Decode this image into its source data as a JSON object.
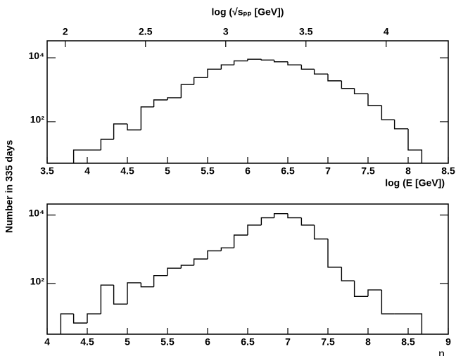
{
  "ylabel": "Number in 335 days",
  "chart_data": [
    {
      "type": "histogram",
      "xlabel": "log (E [GeV])",
      "x2label": "log (√sₚₚ [GeV])",
      "log_y": true,
      "color": "#000000",
      "bins": [
        3.83,
        4,
        4.17,
        4.33,
        4.5,
        4.67,
        4.83,
        5,
        5.17,
        5.33,
        5.5,
        5.67,
        5.83,
        6,
        6.17,
        6.33,
        6.5,
        6.67,
        6.83,
        7,
        7.17,
        7.33,
        7.5,
        7.67,
        7.83,
        8,
        8.17
      ],
      "values": [
        13,
        13,
        28,
        85,
        55,
        290,
        480,
        560,
        1450,
        2400,
        4400,
        6000,
        8000,
        9000,
        8500,
        7500,
        6000,
        4400,
        3100,
        1900,
        1100,
        750,
        320,
        115,
        60,
        13
      ],
      "xlim": [
        3.5,
        8.5
      ],
      "xticks": [
        3.5,
        4,
        4.5,
        5,
        5.5,
        6,
        6.5,
        7,
        7.5,
        8,
        8.5
      ],
      "x2lim": [
        1.887,
        4.387
      ],
      "x2ticks": [
        2,
        2.5,
        3,
        3.5,
        4
      ],
      "ylim": [
        5,
        34000
      ],
      "yticks": [
        {
          "value": 100,
          "label": "10²"
        },
        {
          "value": 10000,
          "label": "10⁴"
        }
      ]
    },
    {
      "type": "histogram",
      "xlabel": "η",
      "log_y": true,
      "color": "#000000",
      "bins": [
        4.17,
        4.33,
        4.5,
        4.67,
        4.83,
        5,
        5.17,
        5.33,
        5.5,
        5.67,
        5.83,
        6,
        6.17,
        6.33,
        6.5,
        6.67,
        6.83,
        7,
        7.17,
        7.33,
        7.5,
        7.67,
        7.83,
        8,
        8.17,
        8.33,
        8.5,
        8.67
      ],
      "values": [
        13,
        7,
        13,
        90,
        25,
        105,
        80,
        170,
        280,
        340,
        520,
        900,
        1100,
        2600,
        5100,
        8300,
        11000,
        8300,
        5100,
        2000,
        300,
        120,
        42,
        65,
        13,
        13,
        13
      ],
      "xlim": [
        4,
        9
      ],
      "xticks": [
        4,
        4.5,
        5,
        5.5,
        6,
        6.5,
        7,
        7.5,
        8,
        8.5,
        9
      ],
      "ylim": [
        3.3,
        21000
      ],
      "yticks": [
        {
          "value": 100,
          "label": "10²"
        },
        {
          "value": 10000,
          "label": "10⁴"
        }
      ]
    }
  ]
}
